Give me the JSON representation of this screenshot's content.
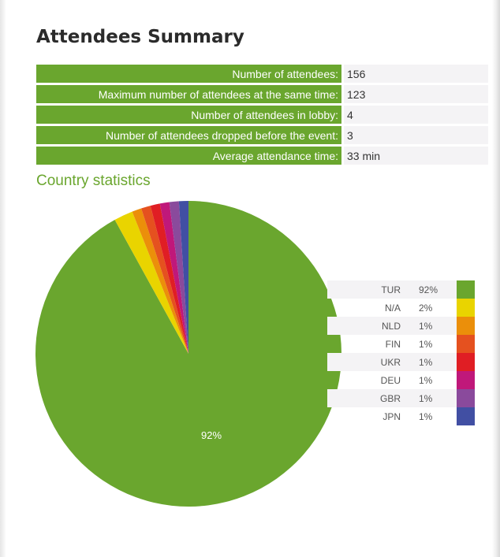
{
  "summary": {
    "title": "Attendees Summary",
    "rows": [
      {
        "label": "Number of attendees:",
        "value": "156"
      },
      {
        "label": "Maximum number of attendees at the same time:",
        "value": "123"
      },
      {
        "label": "Number of attendees in lobby:",
        "value": "4"
      },
      {
        "label": "Number of attendees dropped before the event:",
        "value": "3"
      },
      {
        "label": "Average attendance time:",
        "value": "33 min"
      }
    ]
  },
  "country": {
    "title": "Country statistics"
  },
  "chart_data": {
    "type": "pie",
    "title": "Country statistics",
    "categories": [
      "TUR",
      "N/A",
      "NLD",
      "FIN",
      "UKR",
      "DEU",
      "GBR",
      "JPN"
    ],
    "values": [
      92,
      2,
      1,
      1,
      1,
      1,
      1,
      1
    ],
    "value_labels": [
      "92%",
      "2%",
      "1%",
      "1%",
      "1%",
      "1%",
      "1%",
      "1%"
    ],
    "colors": [
      "#6aa62e",
      "#e9d400",
      "#eb8f0a",
      "#e5511f",
      "#e01e24",
      "#c0187a",
      "#8a4a9c",
      "#414fa3"
    ],
    "slice_label": "92%",
    "legend": "right"
  }
}
